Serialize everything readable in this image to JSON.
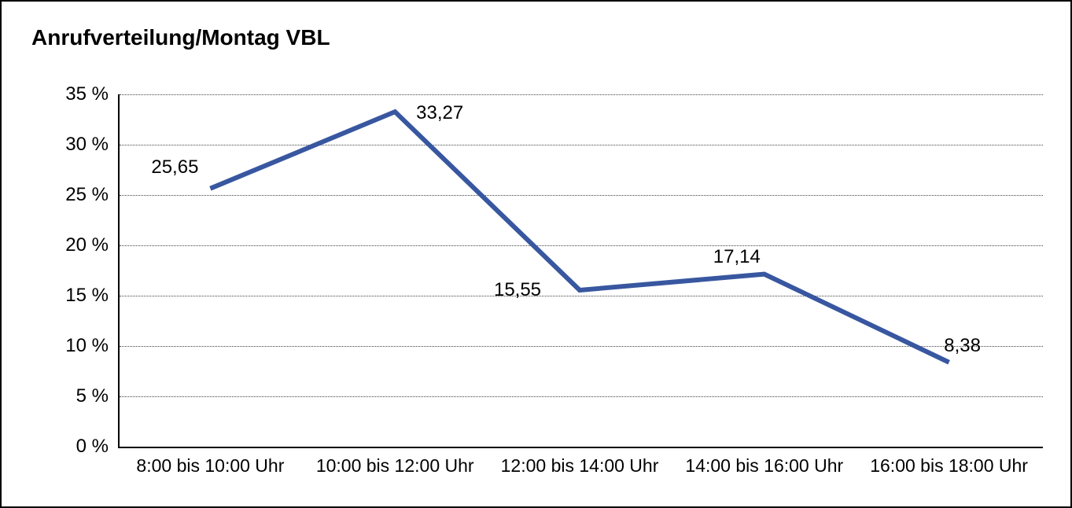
{
  "chart_data": {
    "type": "line",
    "title": "Anrufverteilung/Montag VBL",
    "categories": [
      "8:00 bis 10:00 Uhr",
      "10:00 bis 12:00 Uhr",
      "12:00 bis 14:00 Uhr",
      "14:00 bis 16:00 Uhr",
      "16:00 bis 18:00 Uhr"
    ],
    "values": [
      25.65,
      33.27,
      15.55,
      17.14,
      8.38
    ],
    "value_labels": [
      "25,65",
      "33,27",
      "15,55",
      "17,14",
      "8,38"
    ],
    "xlabel": "",
    "ylabel": "",
    "ylim": [
      0,
      35
    ],
    "ytick_step": 5,
    "ytick_labels": [
      "35 %",
      "30 %",
      "25 %",
      "20 %",
      "15 %",
      "10 %",
      "5 %",
      "0 %"
    ],
    "grid": "horizontal-dotted",
    "legend": "none",
    "markers": "none",
    "decimal_separator": ","
  },
  "colors": {
    "line": "#3857A0",
    "grid": "#444444",
    "axis": "#000000",
    "text": "#000000",
    "background": "#ffffff",
    "frame_border": "#000000"
  }
}
